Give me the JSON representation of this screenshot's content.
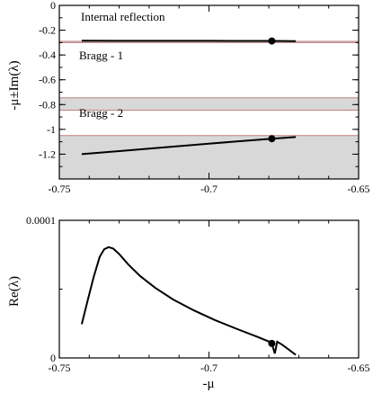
{
  "chart_data": [
    {
      "type": "line",
      "ylabel": "-μ±Im(λ)",
      "xlim": [
        -0.75,
        -0.65
      ],
      "ylim": [
        -1.4,
        0
      ],
      "x_ticks": [
        "-0.75",
        "-0.7",
        "-0.65"
      ],
      "y_ticks": [
        "0",
        "-0.2",
        "-0.4",
        "-0.6",
        "-0.8",
        "-1",
        "-1.2"
      ],
      "x_tick_values": [
        -0.75,
        -0.7,
        -0.65
      ],
      "y_tick_values": [
        0,
        -0.2,
        -0.4,
        -0.6,
        -0.8,
        -1.0,
        -1.2
      ],
      "bands": [
        {
          "y0": -0.3,
          "y1": -0.29,
          "color": "#d8d8d8",
          "edge": "#c08080"
        },
        {
          "y0": -0.845,
          "y1": -0.745,
          "color": "#d8d8d8",
          "edge": "#c08080"
        },
        {
          "y0": -1.4,
          "y1": -1.05,
          "color": "#d8d8d8",
          "edge": "#c08080"
        }
      ],
      "annotations": [
        "Internal reflection",
        "Bragg - 1",
        "Bragg - 2"
      ],
      "series": [
        {
          "points": [
            [
              -0.7425,
              -0.285
            ],
            [
              -0.7,
              -0.286
            ],
            [
              -0.679,
              -0.287
            ],
            [
              -0.671,
              -0.288
            ]
          ]
        },
        {
          "points": [
            [
              -0.7425,
              -1.2
            ],
            [
              -0.72,
              -1.155
            ],
            [
              -0.7,
              -1.115
            ],
            [
              -0.679,
              -1.075
            ],
            [
              -0.671,
              -1.062
            ]
          ]
        }
      ],
      "markers": [
        [
          -0.679,
          -0.287
        ],
        [
          -0.679,
          -1.075
        ]
      ]
    },
    {
      "type": "line",
      "xlabel": "-μ",
      "ylabel": "Re(λ)",
      "xlim": [
        -0.75,
        -0.65
      ],
      "ylim": [
        0,
        0.0001
      ],
      "x_ticks": [
        "-0.75",
        "-0.7",
        "-0.65"
      ],
      "y_ticks": [
        "0",
        "0.0001"
      ],
      "x_tick_values": [
        -0.75,
        -0.7,
        -0.65
      ],
      "y_tick_values": [
        0,
        0.0001
      ],
      "series": [
        {
          "points": [
            [
              -0.7425,
              2.45e-05
            ],
            [
              -0.7405,
              4.2e-05
            ],
            [
              -0.7385,
              5.9e-05
            ],
            [
              -0.7365,
              7.35e-05
            ],
            [
              -0.735,
              7.9e-05
            ],
            [
              -0.7335,
              8.05e-05
            ],
            [
              -0.732,
              7.95e-05
            ],
            [
              -0.73,
              7.55e-05
            ],
            [
              -0.727,
              6.8e-05
            ],
            [
              -0.723,
              5.95e-05
            ],
            [
              -0.718,
              5.1e-05
            ],
            [
              -0.712,
              4.25e-05
            ],
            [
              -0.705,
              3.45e-05
            ],
            [
              -0.698,
              2.75e-05
            ],
            [
              -0.69,
              2.05e-05
            ],
            [
              -0.684,
              1.55e-05
            ],
            [
              -0.6795,
              1.15e-05
            ],
            [
              -0.679,
              1.05e-05
            ],
            [
              -0.678,
              3.2e-06
            ],
            [
              -0.6772,
              1.18e-05
            ],
            [
              -0.6755,
              9.5e-06
            ],
            [
              -0.673,
              5.5e-06
            ],
            [
              -0.671,
              2.2e-06
            ]
          ]
        }
      ],
      "markers": [
        [
          -0.679,
          1.05e-05
        ]
      ]
    }
  ]
}
